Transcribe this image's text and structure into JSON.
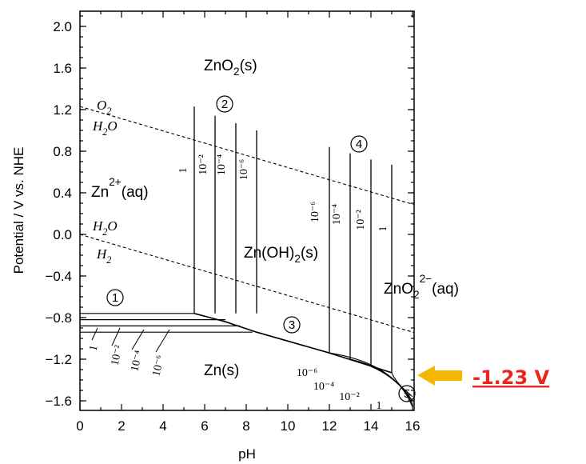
{
  "chart_data": {
    "type": "line",
    "xlabel": "pH",
    "ylabel": "Potential / V vs. NHE",
    "xlim": [
      0,
      16
    ],
    "ylim": [
      -1.8,
      2.3
    ],
    "x_ticks": [
      "0",
      "2",
      "4",
      "6",
      "8",
      "10",
      "12",
      "14",
      "16"
    ],
    "y_ticks": [
      "2.0",
      "1.6",
      "1.2",
      "0.8",
      "0.4",
      "0.0",
      "−0.4",
      "−0.8",
      "−1.2",
      "−1.6"
    ],
    "y_tick_values": [
      2.0,
      1.6,
      1.2,
      0.8,
      0.4,
      0.0,
      -0.4,
      -0.8,
      -1.2,
      -1.6
    ],
    "regions": [
      {
        "label": "ZnO₂(s)",
        "main": "ZnO",
        "sub": "2",
        "tail": "(s)"
      },
      {
        "label": "Zn²⁺(aq)",
        "main": "Zn",
        "sup": "2+",
        "tail": "(aq)"
      },
      {
        "label": "Zn(OH)₂(s)",
        "main": "Zn(OH)",
        "sub": "2",
        "tail": "(s)"
      },
      {
        "label": "ZnO₂²⁻(aq)",
        "main": "ZnO",
        "sub": "2",
        "sup": "2−",
        "tail": "(aq)"
      },
      {
        "label": "Zn(s)",
        "main": "Zn(s)"
      }
    ],
    "water_lines": [
      {
        "upper": "O",
        "upper_sub": "2",
        "lower": "H",
        "lower_sub": "2",
        "lower_tail": "O",
        "E0": 1.23,
        "slope": -0.059
      },
      {
        "upper": "H",
        "upper_sub": "2",
        "upper_tail": "O",
        "lower": "H",
        "lower_sub": "2",
        "E0": 0.0,
        "slope": -0.059
      }
    ],
    "zn2_boundary": {
      "pH": [
        5.5,
        6.5,
        7.5,
        8.5
      ],
      "E_top": [
        1.23,
        1.14,
        1.07,
        1.0
      ],
      "labels": [
        "1",
        "10⁻²",
        "10⁻⁴",
        "10⁻⁶"
      ]
    },
    "zno2_boundary": {
      "pH": [
        12.0,
        13.0,
        14.0,
        15.0
      ],
      "E_top": [
        0.84,
        0.78,
        0.72,
        0.67
      ],
      "labels": [
        "10⁻⁶",
        "10⁻⁴",
        "10⁻²",
        "1"
      ]
    },
    "zn_reduction_lines": {
      "E": [
        -0.76,
        -0.82,
        -0.88,
        -0.94
      ],
      "labels": [
        "1",
        "10⁻²",
        "10⁻⁴",
        "10⁻⁶"
      ]
    },
    "zn_oh_line": {
      "pH": [
        5.5,
        7.0,
        8.5,
        12.0,
        15.0
      ],
      "E": [
        -0.76,
        -0.84,
        -0.94,
        -1.14,
        -1.33
      ]
    },
    "zno2_reduction_labels": [
      "10⁻⁶",
      "10⁻⁴",
      "10⁻²",
      "1"
    ],
    "circled_labels": [
      "1",
      "2",
      "3",
      "4",
      "5"
    ],
    "annotation": {
      "text": "-1.23 V",
      "target_pH": 16,
      "target_E": -1.42,
      "arrow_color": "#f5b800",
      "text_color": "#e8251f"
    }
  }
}
